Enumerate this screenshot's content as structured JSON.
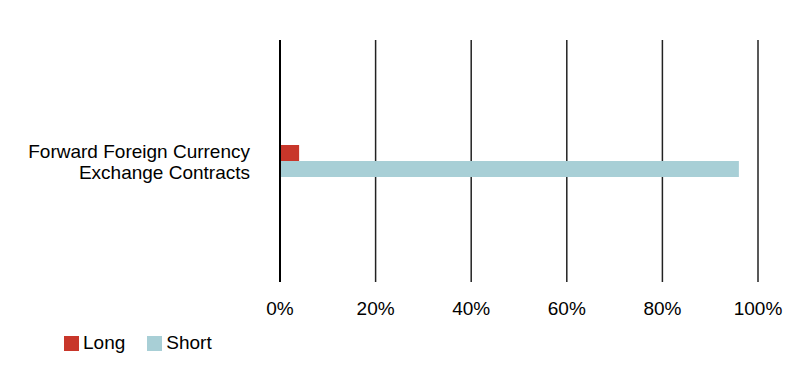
{
  "chart_data": {
    "type": "bar",
    "orientation": "horizontal",
    "categories": [
      "Forward Foreign Currency Exchange Contracts"
    ],
    "series": [
      {
        "name": "Long",
        "color": "#c8362a",
        "values": [
          4
        ]
      },
      {
        "name": "Short",
        "color": "#a8cfd6",
        "values": [
          96
        ]
      }
    ],
    "xlim": [
      0,
      100
    ],
    "xticks": [
      {
        "value": 0,
        "label": "0%"
      },
      {
        "value": 20,
        "label": "20%"
      },
      {
        "value": 40,
        "label": "40%"
      },
      {
        "value": 60,
        "label": "60%"
      },
      {
        "value": 80,
        "label": "80%"
      },
      {
        "value": 100,
        "label": "100%"
      }
    ],
    "grid": true,
    "legend": "bottom left"
  }
}
